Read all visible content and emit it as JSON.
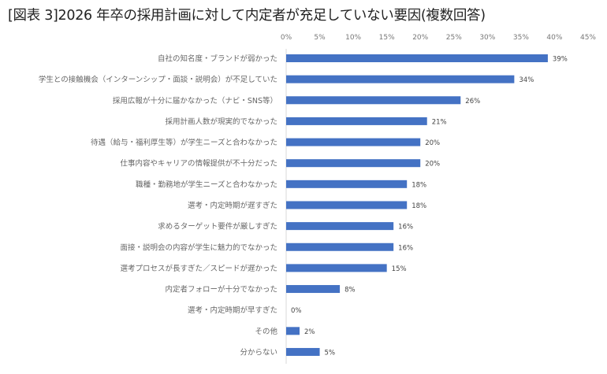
{
  "chart_data": {
    "type": "bar",
    "orientation": "horizontal",
    "title": "[図表 3]2026 年卒の採用計画に対して内定者が充足していない要因(複数回答)",
    "categories": [
      "自社の知名度・ブランドが弱かった",
      "学生との接触機会（インターンシップ・面談・説明会）が不足していた",
      "採用広報が十分に届かなかった（ナビ・SNS等）",
      "採用計画人数が現実的でなかった",
      "待遇（給与・福利厚生等）が学生ニーズと合わなかった",
      "仕事内容やキャリアの情報提供が不十分だった",
      "職種・勤務地が学生ニーズと合わなかった",
      "選考・内定時期が遅すぎた",
      "求めるターゲット要件が厳しすぎた",
      "面接・説明会の内容が学生に魅力的でなかった",
      "選考プロセスが長すぎた／スピードが遅かった",
      "内定者フォローが十分でなかった",
      "選考・内定時期が早すぎた",
      "その他",
      "分からない"
    ],
    "values": [
      39,
      34,
      26,
      21,
      20,
      20,
      18,
      18,
      16,
      16,
      15,
      8,
      0,
      2,
      5
    ],
    "data_labels": [
      "39%",
      "34%",
      "26%",
      "21%",
      "20%",
      "20%",
      "18%",
      "18%",
      "16%",
      "16%",
      "15%",
      "8%",
      "0%",
      "2%",
      "5%"
    ],
    "xticks": [
      "0%",
      "5%",
      "10%",
      "15%",
      "20%",
      "25%",
      "30%",
      "35%",
      "40%",
      "45%"
    ],
    "xlim": [
      0,
      45
    ],
    "axis_position": "top",
    "grid": false,
    "bar_color": "#4472C4"
  }
}
